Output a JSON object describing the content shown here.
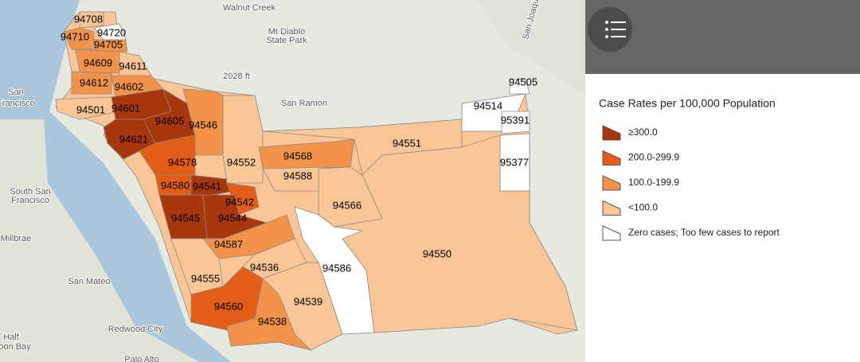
{
  "basemap_labels": [
    "Walnut Creek",
    "Mt Diablo",
    "State Park",
    "2028 ft",
    "San Ramon",
    "San",
    "Francisco",
    "South San",
    "Francisco",
    "Millbrae",
    "San Mateo",
    "Redwood City",
    "Half",
    "Moon Bay",
    "Palo Alto",
    "San Joaquin"
  ],
  "zip_areas": [
    {
      "zip": "94708",
      "color": "#fcc596"
    },
    {
      "zip": "94720",
      "color": "#ffffff"
    },
    {
      "zip": "94710",
      "color": "#f3934a"
    },
    {
      "zip": "94705",
      "color": "#f3934a"
    },
    {
      "zip": "94609",
      "color": "#f3934a"
    },
    {
      "zip": "94611",
      "color": "#fcc596"
    },
    {
      "zip": "94612",
      "color": "#f3934a"
    },
    {
      "zip": "94602",
      "color": "#f3934a"
    },
    {
      "zip": "94501",
      "color": "#fcc596"
    },
    {
      "zip": "94601",
      "color": "#a8380c"
    },
    {
      "zip": "94605",
      "color": "#a8380c"
    },
    {
      "zip": "94621",
      "color": "#a8380c"
    },
    {
      "zip": "94546",
      "color": "#f3934a"
    },
    {
      "zip": "94578",
      "color": "#e35d16"
    },
    {
      "zip": "94580",
      "color": "#e35d16"
    },
    {
      "zip": "94541",
      "color": "#a8380c"
    },
    {
      "zip": "94542",
      "color": "#e35d16"
    },
    {
      "zip": "94545",
      "color": "#a8380c"
    },
    {
      "zip": "94544",
      "color": "#a8380c"
    },
    {
      "zip": "94552",
      "color": "#fcc596"
    },
    {
      "zip": "94568",
      "color": "#f3934a"
    },
    {
      "zip": "94588",
      "color": "#fcc596"
    },
    {
      "zip": "94566",
      "color": "#fcc596"
    },
    {
      "zip": "94551",
      "color": "#fcc596"
    },
    {
      "zip": "94514",
      "color": "#ffffff"
    },
    {
      "zip": "94505",
      "color": "#ffffff"
    },
    {
      "zip": "95391",
      "color": "#ffffff"
    },
    {
      "zip": "95377",
      "color": "#ffffff"
    },
    {
      "zip": "94550",
      "color": "#fcc596"
    },
    {
      "zip": "94586",
      "color": "#ffffff"
    },
    {
      "zip": "94587",
      "color": "#f3934a"
    },
    {
      "zip": "94536",
      "color": "#fcc596"
    },
    {
      "zip": "94555",
      "color": "#fcc596"
    },
    {
      "zip": "94560",
      "color": "#e35d16"
    },
    {
      "zip": "94539",
      "color": "#fcc596"
    },
    {
      "zip": "94538",
      "color": "#f3934a"
    }
  ],
  "legend": {
    "title": "Case Rates per 100,000 Population",
    "items": [
      {
        "label": "≥300.0",
        "color": "#a8380c"
      },
      {
        "label": "200.0-299.9",
        "color": "#e35d16"
      },
      {
        "label": "100.0-199.9",
        "color": "#f3934a"
      },
      {
        "label": "<100.0",
        "color": "#fcc596"
      },
      {
        "label": "Zero cases; Too few cases to report",
        "color": "#ffffff"
      }
    ]
  }
}
